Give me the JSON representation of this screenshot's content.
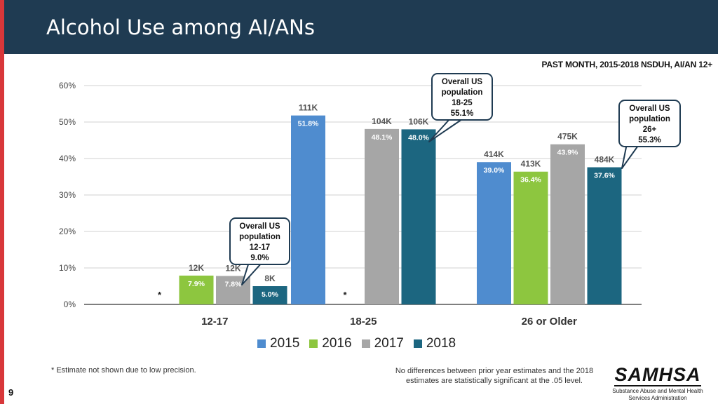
{
  "header": {
    "title": "Alcohol Use among AI/ANs"
  },
  "subtitle": "PAST MONTH, 2015-2018  NSDUH, AI/AN 12+",
  "colors": {
    "2015": "#4f8ccf",
    "2016": "#8dc63f",
    "2017": "#a6a6a6",
    "2018": "#1c6680",
    "header_bg": "#1f3b52",
    "accent_red": "#d8373a"
  },
  "chart_data": {
    "type": "bar",
    "title": "",
    "xlabel": "",
    "ylabel": "",
    "ylim": [
      0,
      60
    ],
    "y_ticks": [
      "0%",
      "10%",
      "20%",
      "30%",
      "40%",
      "50%",
      "60%"
    ],
    "grid": true,
    "legend_position": "bottom",
    "categories": [
      "12-17",
      "18-25",
      "26 or Older"
    ],
    "series": [
      {
        "name": "2015",
        "values": [
          null,
          51.8,
          39.0
        ],
        "value_labels": [
          "*",
          "51.8%",
          "39.0%"
        ],
        "count_labels": [
          "",
          "111K",
          "414K"
        ]
      },
      {
        "name": "2016",
        "values": [
          7.9,
          null,
          36.4
        ],
        "value_labels": [
          "7.9%",
          "*",
          "36.4%"
        ],
        "count_labels": [
          "12K",
          "",
          "413K"
        ]
      },
      {
        "name": "2017",
        "values": [
          7.8,
          48.1,
          43.9
        ],
        "value_labels": [
          "7.8%",
          "48.1%",
          "43.9%"
        ],
        "count_labels": [
          "12K",
          "104K",
          "475K"
        ]
      },
      {
        "name": "2018",
        "values": [
          5.0,
          48.0,
          37.6
        ],
        "value_labels": [
          "5.0%",
          "48.0%",
          "37.6%"
        ],
        "count_labels": [
          "8K",
          "106K",
          "484K"
        ]
      }
    ],
    "callouts": [
      {
        "lines": [
          "Overall US",
          "population",
          "12-17",
          "9.0%"
        ]
      },
      {
        "lines": [
          "Overall US",
          "population",
          "18-25",
          "55.1%"
        ]
      },
      {
        "lines": [
          "Overall US",
          "population",
          "26+",
          "55.3%"
        ]
      }
    ]
  },
  "footnotes": {
    "left": "* Estimate not shown due to low precision.",
    "right": "No differences between prior year estimates and the 2018 estimates are statistically significant at the .05 level."
  },
  "page_number": "9",
  "logo": {
    "word": "SAMHSA",
    "tagline": "Substance Abuse and Mental Health Services Administration"
  }
}
